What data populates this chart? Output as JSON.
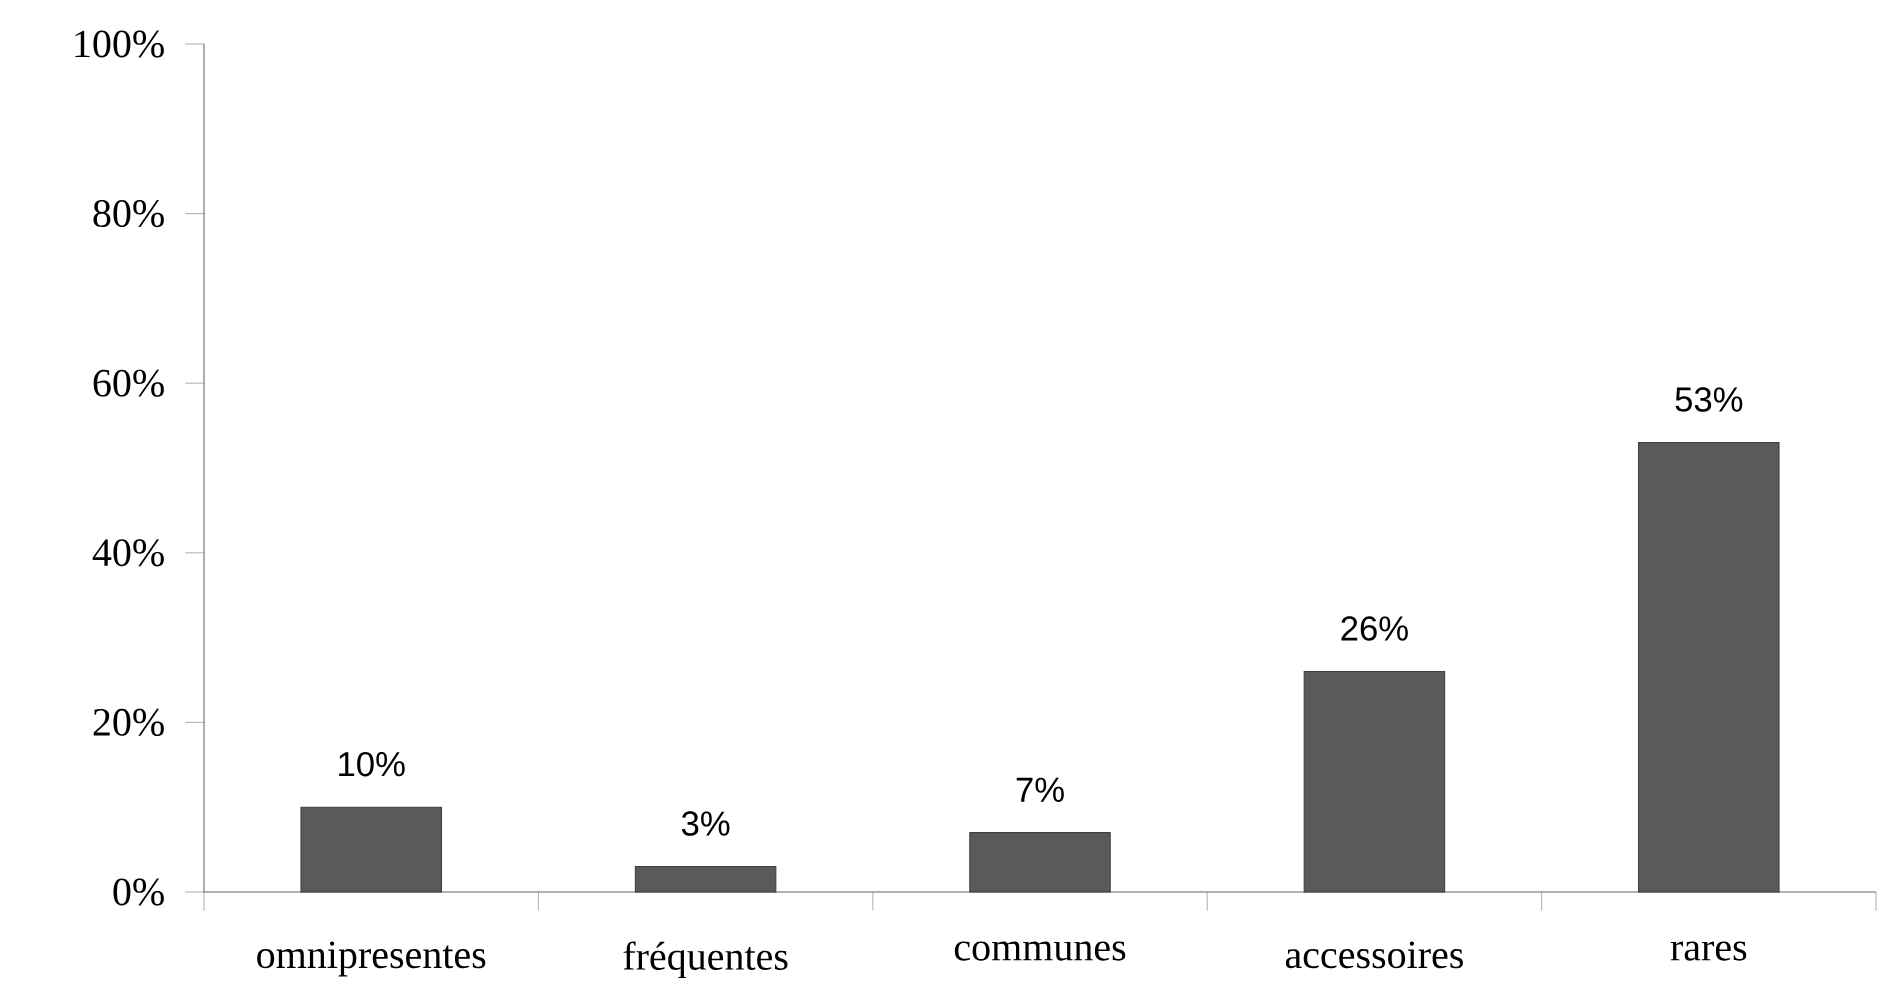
{
  "chart_data": {
    "type": "bar",
    "categories": [
      "omnipresentes",
      "fréquentes",
      "communes",
      "accessoires",
      "rares"
    ],
    "values": [
      10,
      3,
      7,
      26,
      53
    ],
    "value_labels": [
      "10%",
      "3%",
      "7%",
      "26%",
      "53%"
    ],
    "color": "#5a5a5a",
    "ylim": [
      0,
      100
    ],
    "yticks": [
      {
        "value": 0,
        "label": "0%"
      },
      {
        "value": 20,
        "label": "20%"
      },
      {
        "value": 40,
        "label": "40%"
      },
      {
        "value": 60,
        "label": "60%"
      },
      {
        "value": 80,
        "label": "80%"
      },
      {
        "value": 100,
        "label": "100%"
      }
    ],
    "grid": false
  }
}
